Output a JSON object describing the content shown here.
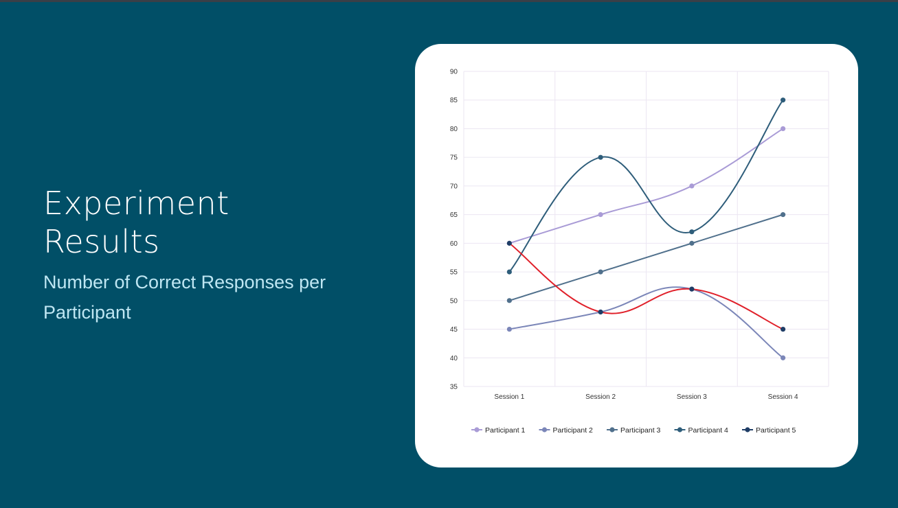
{
  "slide": {
    "title": "Experiment Results",
    "subtitle": "Number of Correct Responses per Participant"
  },
  "chart_data": {
    "type": "line",
    "smooth": true,
    "categories": [
      "Session 1",
      "Session 2",
      "Session 3",
      "Session 4"
    ],
    "ylim": [
      35,
      90
    ],
    "yticks": [
      35,
      40,
      45,
      50,
      55,
      60,
      65,
      70,
      75,
      80,
      85,
      90
    ],
    "grid": true,
    "legend_position": "bottom",
    "series": [
      {
        "name": "Participant 1",
        "values": [
          60,
          65,
          70,
          80
        ],
        "color": "#a99bd6",
        "line_color": "#a99bd6"
      },
      {
        "name": "Participant 2",
        "values": [
          45,
          48,
          52,
          40
        ],
        "color": "#7b86b8",
        "line_color": "#7b86b8"
      },
      {
        "name": "Participant 3",
        "values": [
          50,
          55,
          60,
          65
        ],
        "color": "#50708c",
        "line_color": "#50708c"
      },
      {
        "name": "Participant 4",
        "values": [
          55,
          75,
          62,
          85
        ],
        "color": "#2e5d7a",
        "line_color": "#2e5d7a"
      },
      {
        "name": "Participant 5",
        "values": [
          60,
          48,
          52,
          45
        ],
        "color": "#1f3d66",
        "line_color": "#e0202a"
      }
    ]
  }
}
